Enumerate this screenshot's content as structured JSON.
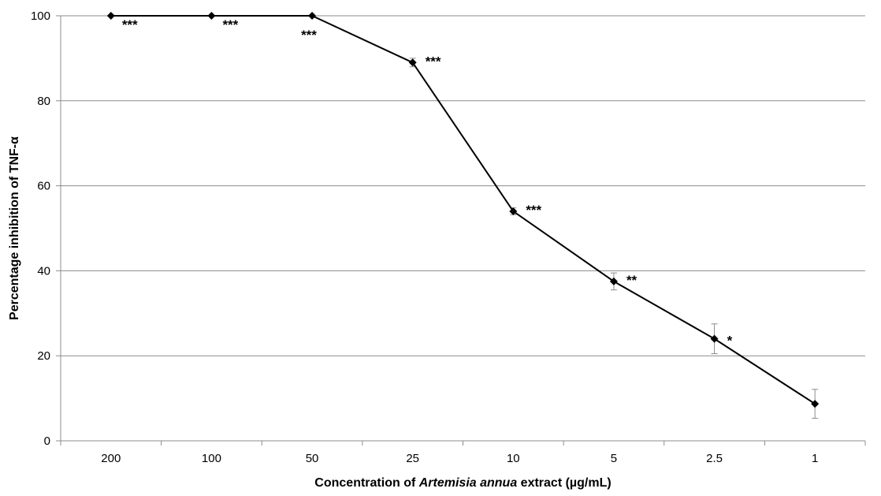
{
  "chart_data": {
    "type": "line",
    "categories": [
      "200",
      "100",
      "50",
      "25",
      "10",
      "5",
      "2.5",
      "1"
    ],
    "series": [
      {
        "values": [
          100,
          100,
          100,
          89,
          54,
          37.5,
          24,
          8.7
        ],
        "errors": [
          0,
          0,
          0,
          1,
          0.8,
          2,
          3.5,
          3.4
        ]
      }
    ],
    "significance": [
      "***",
      "***",
      "***",
      "***",
      "***",
      "**",
      "*",
      ""
    ],
    "ylim": [
      0,
      100
    ],
    "yticks": [
      0,
      20,
      40,
      60,
      80,
      100
    ],
    "ylabel": "Percentage inhibition of TNF-α",
    "xlabel_parts": [
      "Concentration of ",
      "Artemisia annua",
      " extract (µg/mL)"
    ],
    "grid": "horizontal",
    "colors": {
      "line": "#000000",
      "grid": "#8c8c8c",
      "error_bar": "#8c8c8c"
    }
  }
}
